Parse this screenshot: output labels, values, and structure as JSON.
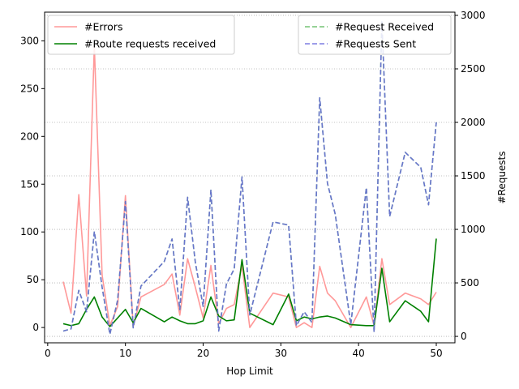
{
  "chart_data": {
    "type": "line",
    "xlabel": "Hop Limit",
    "ylabel_left": "",
    "ylabel_right": "#Requests",
    "xlim": [
      -0.4,
      52.4
    ],
    "ylim_left": [
      -16,
      330
    ],
    "ylim_right": [
      -60,
      3030
    ],
    "xticks": [
      0,
      10,
      20,
      30,
      40,
      50
    ],
    "yticks_left": [
      0,
      50,
      100,
      150,
      200,
      250,
      300
    ],
    "yticks_right": [
      0,
      500,
      1000,
      1500,
      2000,
      2500,
      3000
    ],
    "grid_right_values": [
      0,
      500,
      1000,
      1500,
      2000,
      2500,
      3000
    ],
    "grid": "horizontal dotted (right axis)",
    "legend_left_placement": "upper-left",
    "legend_right_placement": "upper-right",
    "x": [
      2,
      3,
      4,
      5,
      6,
      7,
      8,
      9,
      10,
      11,
      12,
      15,
      16,
      17,
      18,
      19,
      20,
      21,
      22,
      23,
      24,
      25,
      26,
      29,
      31,
      32,
      33,
      34,
      35,
      36,
      37,
      39,
      41,
      42,
      43,
      44,
      46,
      48,
      49,
      50
    ],
    "series": [
      {
        "name": "#Errors",
        "axis": "left",
        "color": "#ff9999",
        "style": "solid",
        "width": 1.6,
        "values": [
          48,
          15,
          139,
          33,
          295,
          55,
          2,
          22,
          138,
          1,
          32,
          45,
          56,
          13,
          72,
          42,
          10,
          65,
          4,
          20,
          24,
          65,
          0,
          36,
          32,
          0,
          5,
          0,
          64,
          36,
          28,
          0,
          32,
          2,
          72,
          24,
          36,
          30,
          24,
          37
        ]
      },
      {
        "name": "#Route requests received",
        "axis": "left",
        "color": "#008000",
        "style": "solid",
        "width": 1.6,
        "values": [
          4,
          2,
          4,
          19,
          32,
          11,
          1,
          10,
          19,
          5,
          20,
          6,
          11,
          7,
          4,
          4,
          7,
          32,
          12,
          7,
          8,
          71,
          15,
          3,
          35,
          7,
          11,
          9,
          11,
          12,
          10,
          3,
          2,
          2,
          62,
          6,
          28,
          17,
          6,
          93
        ]
      },
      {
        "name": "#Request Received",
        "axis": "right",
        "color": "#5cb85c",
        "style": "dashed",
        "width": 1.6,
        "values": [
          50,
          70,
          430,
          230,
          980,
          460,
          20,
          340,
          1260,
          80,
          470,
          700,
          910,
          250,
          1300,
          690,
          280,
          1370,
          50,
          490,
          630,
          1490,
          200,
          1070,
          1040,
          100,
          230,
          130,
          2230,
          1430,
          1140,
          110,
          1390,
          40,
          2940,
          1120,
          1720,
          1580,
          1230,
          2000
        ]
      },
      {
        "name": "#Requests Sent",
        "axis": "right",
        "color": "#6666dd",
        "style": "dashed",
        "width": 1.6,
        "values": [
          50,
          70,
          430,
          230,
          980,
          460,
          20,
          340,
          1260,
          80,
          470,
          700,
          910,
          250,
          1300,
          690,
          280,
          1370,
          50,
          490,
          630,
          1490,
          200,
          1070,
          1040,
          100,
          230,
          130,
          2230,
          1430,
          1140,
          110,
          1390,
          40,
          2940,
          1120,
          1720,
          1580,
          1230,
          2000
        ]
      }
    ]
  }
}
